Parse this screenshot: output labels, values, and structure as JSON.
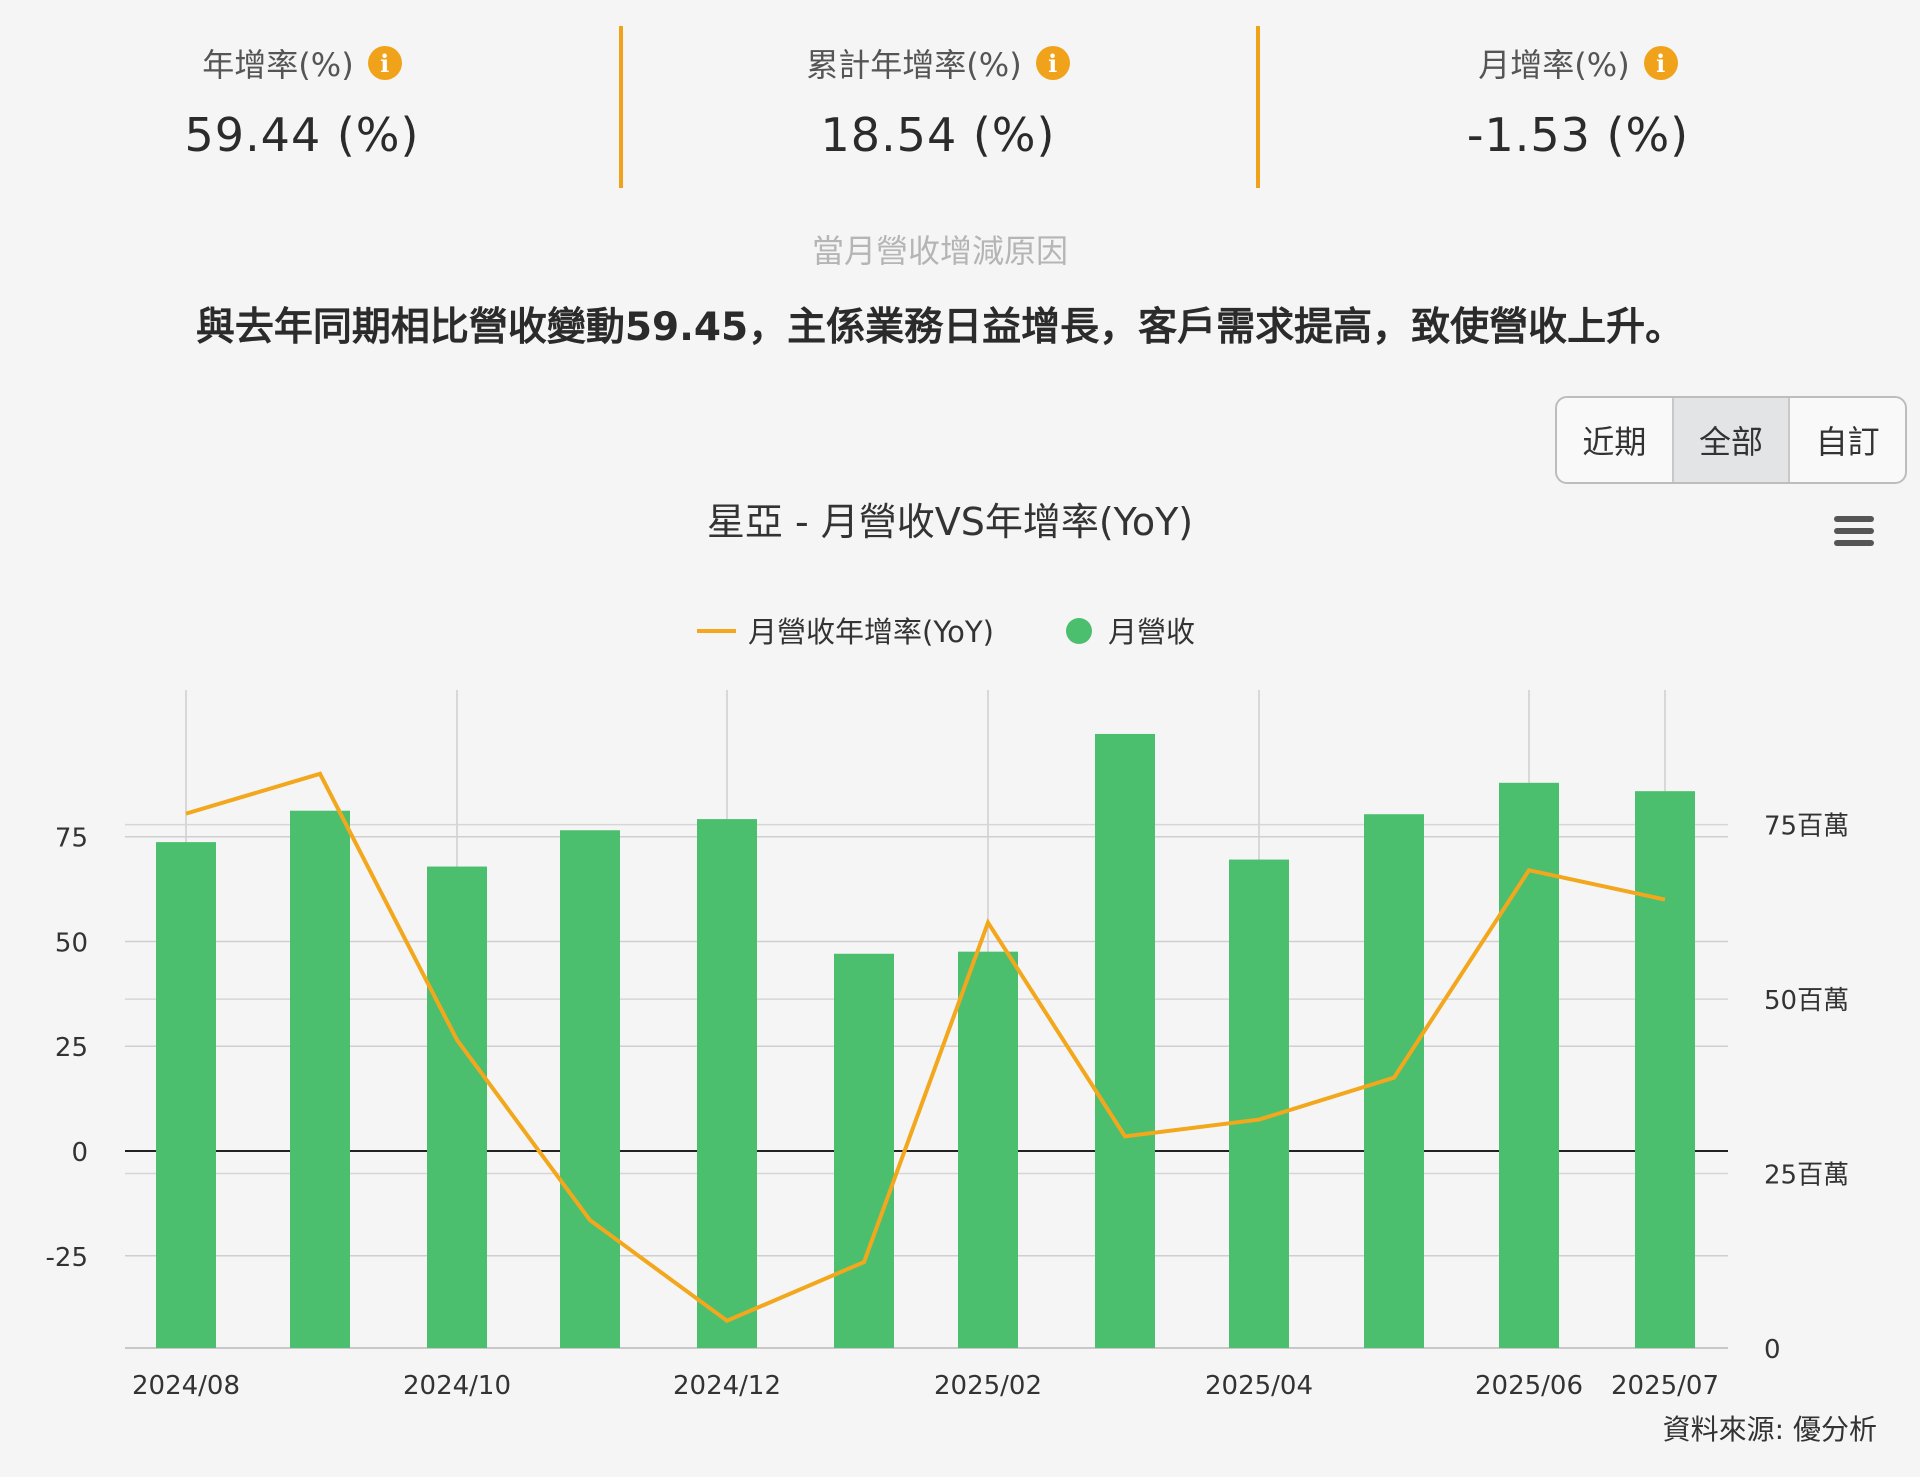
{
  "stats": [
    {
      "label": "年增率(%)",
      "value": "59.44 (%)"
    },
    {
      "label": "累計年增率(%)",
      "value": "18.54 (%)"
    },
    {
      "label": "月增率(%)",
      "value": "-1.53 (%)"
    }
  ],
  "info_icon": "info-icon",
  "reason": {
    "title": "當月營收增減原因",
    "text": "與去年同期相比營收變動59.45，主係業務日益增長，客戶需求提高，致使營收上升。"
  },
  "range_buttons": [
    {
      "label": "近期",
      "active": false
    },
    {
      "label": "全部",
      "active": true
    },
    {
      "label": "自訂",
      "active": false
    }
  ],
  "menu_icon": "hamburger-menu-icon",
  "source": "資料來源: 優分析",
  "colors": {
    "accent": "#f0a31a",
    "bar": "#4bbf6e",
    "line": "#f2a71d"
  },
  "chart_data": {
    "type": "bar",
    "title": "星亞 - 月營收VS年增率(YoY)",
    "categories": [
      "2024/08",
      "2024/09",
      "2024/10",
      "2024/11",
      "2024/12",
      "2025/01",
      "2025/02",
      "2025/03",
      "2025/04",
      "2025/05",
      "2025/06",
      "2025/07"
    ],
    "x_tick_labels": [
      "2024/08",
      "",
      "2024/10",
      "",
      "2024/12",
      "",
      "2025/02",
      "",
      "2025/04",
      "",
      "2025/06",
      "2025/07"
    ],
    "series": [
      {
        "name": "月營收年增率(YoY)",
        "type": "line",
        "axis": "left",
        "color": "#f2a71d",
        "values": [
          80.5,
          90,
          26.5,
          -16.5,
          -40.5,
          -26.5,
          54.5,
          3.5,
          7.5,
          17.5,
          67,
          60
        ]
      },
      {
        "name": "月營收",
        "type": "bar",
        "axis": "right",
        "color": "#4bbf6e",
        "values": [
          72.5,
          77,
          69,
          74.2,
          75.8,
          56.5,
          56.8,
          88,
          70,
          76.5,
          81,
          79.8
        ]
      }
    ],
    "y_left": {
      "ylim": [
        -47,
        110
      ],
      "ticks": [
        75,
        50,
        25,
        0,
        -25
      ]
    },
    "y_right": {
      "ylim": [
        0,
        94.3
      ],
      "ticks": [
        {
          "value": 75,
          "label": "75百萬"
        },
        {
          "value": 50,
          "label": "50百萬"
        },
        {
          "value": 25,
          "label": "25百萬"
        },
        {
          "value": 0,
          "label": "0"
        }
      ]
    },
    "legend": "top-center",
    "grid": true
  }
}
